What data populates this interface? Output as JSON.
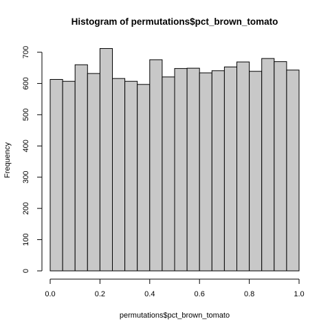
{
  "chart_data": {
    "type": "bar",
    "title": "Histogram of permutations$pct_brown_tomato",
    "xlabel": "permutations$pct_brown_tomato",
    "ylabel": "Frequency",
    "bin_edges": [
      0.0,
      0.05,
      0.1,
      0.15,
      0.2,
      0.25,
      0.3,
      0.35,
      0.4,
      0.45,
      0.5,
      0.55,
      0.6,
      0.65,
      0.7,
      0.75,
      0.8,
      0.85,
      0.9,
      0.95,
      1.0
    ],
    "values": [
      613,
      607,
      660,
      632,
      712,
      616,
      607,
      597,
      676,
      621,
      648,
      649,
      634,
      641,
      653,
      669,
      639,
      680,
      670,
      643
    ],
    "xlim": [
      0.0,
      1.0
    ],
    "ylim": [
      0,
      700
    ],
    "x_ticks": [
      "0.0",
      "0.2",
      "0.4",
      "0.6",
      "0.8",
      "1.0"
    ],
    "y_ticks": [
      "0",
      "100",
      "200",
      "300",
      "400",
      "500",
      "600",
      "700"
    ],
    "bar_color": "#c8c8c8",
    "grid": false
  }
}
